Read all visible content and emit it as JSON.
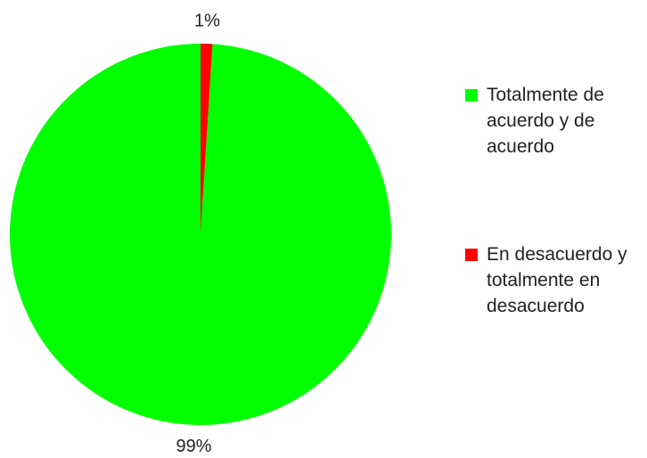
{
  "chart_data": {
    "type": "pie",
    "slices": [
      {
        "label": "Totalmente de acuerdo y de acuerdo",
        "value": 99,
        "display": "99%",
        "color": "#00ff00"
      },
      {
        "label": "En desacuerdo y totalmente en desacuerdo",
        "value": 1,
        "display": "1%",
        "color": "#ff0000"
      }
    ],
    "legend_position": "right"
  }
}
